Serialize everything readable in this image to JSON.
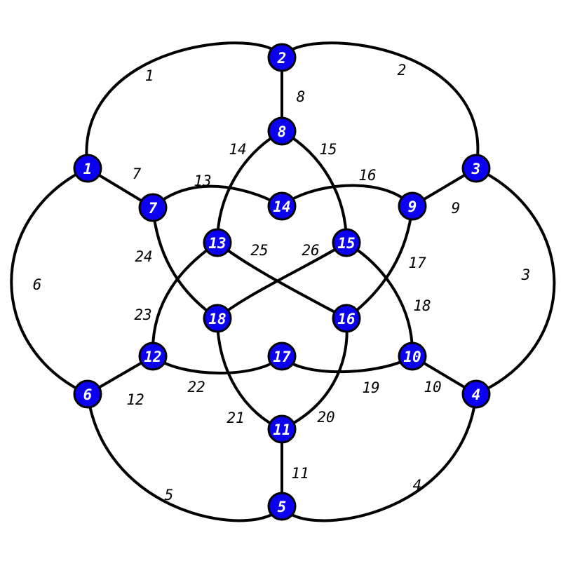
{
  "colors": {
    "node_fill": "#0b00f0",
    "node_text": "#ffffff",
    "stroke": "#000000",
    "background": "#ffffff"
  },
  "nodes": [
    {
      "id": 1,
      "label": "1"
    },
    {
      "id": 2,
      "label": "2"
    },
    {
      "id": 3,
      "label": "3"
    },
    {
      "id": 4,
      "label": "4"
    },
    {
      "id": 5,
      "label": "5"
    },
    {
      "id": 6,
      "label": "6"
    },
    {
      "id": 7,
      "label": "7"
    },
    {
      "id": 8,
      "label": "8"
    },
    {
      "id": 9,
      "label": "9"
    },
    {
      "id": 10,
      "label": "10"
    },
    {
      "id": 11,
      "label": "11"
    },
    {
      "id": 12,
      "label": "12"
    },
    {
      "id": 13,
      "label": "13"
    },
    {
      "id": 14,
      "label": "14"
    },
    {
      "id": 15,
      "label": "15"
    },
    {
      "id": 16,
      "label": "16"
    },
    {
      "id": 17,
      "label": "17"
    },
    {
      "id": 18,
      "label": "18"
    }
  ],
  "edges": [
    {
      "label": "1",
      "from": 1,
      "to": 2
    },
    {
      "label": "2",
      "from": 2,
      "to": 3
    },
    {
      "label": "3",
      "from": 3,
      "to": 4
    },
    {
      "label": "4",
      "from": 4,
      "to": 5
    },
    {
      "label": "5",
      "from": 5,
      "to": 6
    },
    {
      "label": "6",
      "from": 6,
      "to": 1
    },
    {
      "label": "7",
      "from": 1,
      "to": 7
    },
    {
      "label": "8",
      "from": 2,
      "to": 8
    },
    {
      "label": "9",
      "from": 3,
      "to": 9
    },
    {
      "label": "10",
      "from": 4,
      "to": 10
    },
    {
      "label": "11",
      "from": 5,
      "to": 11
    },
    {
      "label": "12",
      "from": 6,
      "to": 12
    },
    {
      "label": "13",
      "from": 7,
      "to": 14
    },
    {
      "label": "14",
      "from": 8,
      "to": 13
    },
    {
      "label": "15",
      "from": 8,
      "to": 15
    },
    {
      "label": "16",
      "from": 14,
      "to": 9
    },
    {
      "label": "17",
      "from": 9,
      "to": 16
    },
    {
      "label": "18",
      "from": 15,
      "to": 10
    },
    {
      "label": "19",
      "from": 17,
      "to": 10
    },
    {
      "label": "20",
      "from": 16,
      "to": 11
    },
    {
      "label": "21",
      "from": 18,
      "to": 11
    },
    {
      "label": "22",
      "from": 12,
      "to": 17
    },
    {
      "label": "23",
      "from": 12,
      "to": 13
    },
    {
      "label": "24",
      "from": 7,
      "to": 18
    },
    {
      "label": "25",
      "from": 13,
      "to": 16
    },
    {
      "label": "26",
      "from": 15,
      "to": 18
    }
  ]
}
